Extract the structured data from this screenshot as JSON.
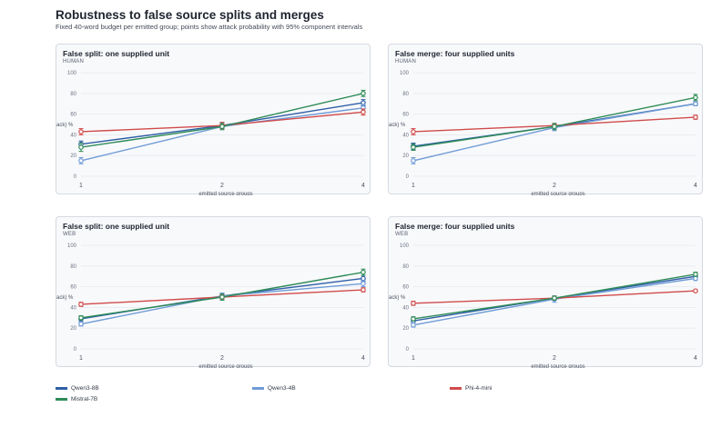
{
  "header": {
    "title": "Robustness to false source splits and merges",
    "subtitle": "Fixed 40-word budget per emitted group; points show attack probability with 95% component intervals"
  },
  "series_styles": [
    {
      "name": "Qwen3-8B",
      "color": "#2f5fa6"
    },
    {
      "name": "Qwen3-4B",
      "color": "#6f9bd6"
    },
    {
      "name": "Phi-4-mini",
      "color": "#d14b4b"
    },
    {
      "name": "Mistral-7B",
      "color": "#2e8b57"
    }
  ],
  "chart_data": [
    {
      "type": "line",
      "title": "False split: one supplied unit",
      "subtitle": "HUMAN",
      "xlabel": "emitted source groups",
      "ylabel": "p(attack) %",
      "x": [
        1,
        2,
        4
      ],
      "x_ticks": [
        "1",
        "2",
        "4"
      ],
      "ylim": [
        0,
        100
      ],
      "y_ticks": [
        0,
        20,
        40,
        60,
        80,
        100
      ],
      "series": [
        {
          "name": "Qwen3-8B",
          "values": [
            31,
            49,
            71
          ],
          "err": [
            3,
            3,
            3
          ]
        },
        {
          "name": "Qwen3-4B",
          "values": [
            15,
            48,
            66
          ],
          "err": [
            3,
            3,
            3
          ]
        },
        {
          "name": "Phi-4-mini",
          "values": [
            43,
            49,
            62
          ],
          "err": [
            3,
            3,
            3
          ]
        },
        {
          "name": "Mistral-7B",
          "values": [
            28,
            48,
            80
          ],
          "err": [
            4,
            3,
            3
          ]
        }
      ]
    },
    {
      "type": "line",
      "title": "False merge: four supplied units",
      "subtitle": "HUMAN",
      "xlabel": "emitted source groups",
      "ylabel": "p(attack) %",
      "x": [
        1,
        2,
        4
      ],
      "x_ticks": [
        "1",
        "2",
        "4"
      ],
      "ylim": [
        0,
        100
      ],
      "y_ticks": [
        0,
        20,
        40,
        60,
        80,
        100
      ],
      "series": [
        {
          "name": "Qwen3-8B",
          "values": [
            29,
            48,
            70
          ],
          "err": [
            3,
            3,
            2
          ]
        },
        {
          "name": "Qwen3-4B",
          "values": [
            15,
            47,
            70
          ],
          "err": [
            3,
            3,
            2
          ]
        },
        {
          "name": "Phi-4-mini",
          "values": [
            43,
            49,
            57
          ],
          "err": [
            3,
            2,
            2
          ]
        },
        {
          "name": "Mistral-7B",
          "values": [
            28,
            48,
            76
          ],
          "err": [
            3,
            3,
            3
          ]
        }
      ]
    },
    {
      "type": "line",
      "title": "False split: one supplied unit",
      "subtitle": "WEB",
      "xlabel": "emitted source groups",
      "ylabel": "p(attack) %",
      "x": [
        1,
        2,
        4
      ],
      "x_ticks": [
        "1",
        "2",
        "4"
      ],
      "ylim": [
        0,
        100
      ],
      "y_ticks": [
        0,
        20,
        40,
        60,
        80,
        100
      ],
      "series": [
        {
          "name": "Qwen3-8B",
          "values": [
            29,
            51,
            68
          ],
          "err": [
            2,
            2,
            3
          ]
        },
        {
          "name": "Qwen3-4B",
          "values": [
            24,
            51,
            63
          ],
          "err": [
            2,
            3,
            3
          ]
        },
        {
          "name": "Phi-4-mini",
          "values": [
            43,
            50,
            57
          ],
          "err": [
            2,
            2,
            2
          ]
        },
        {
          "name": "Mistral-7B",
          "values": [
            30,
            50,
            74
          ],
          "err": [
            2,
            3,
            3
          ]
        }
      ]
    },
    {
      "type": "line",
      "title": "False merge: four supplied units",
      "subtitle": "WEB",
      "xlabel": "emitted source groups",
      "ylabel": "p(attack) %",
      "x": [
        1,
        2,
        4
      ],
      "x_ticks": [
        "1",
        "2",
        "4"
      ],
      "ylim": [
        0,
        100
      ],
      "y_ticks": [
        0,
        20,
        40,
        60,
        80,
        100
      ],
      "series": [
        {
          "name": "Qwen3-8B",
          "values": [
            27,
            49,
            70
          ],
          "err": [
            2,
            2,
            2
          ]
        },
        {
          "name": "Qwen3-4B",
          "values": [
            23,
            48,
            68
          ],
          "err": [
            2,
            3,
            2
          ]
        },
        {
          "name": "Phi-4-mini",
          "values": [
            44,
            49,
            56
          ],
          "err": [
            2,
            2,
            1
          ]
        },
        {
          "name": "Mistral-7B",
          "values": [
            29,
            49,
            72
          ],
          "err": [
            2,
            2,
            2
          ]
        }
      ]
    }
  ]
}
